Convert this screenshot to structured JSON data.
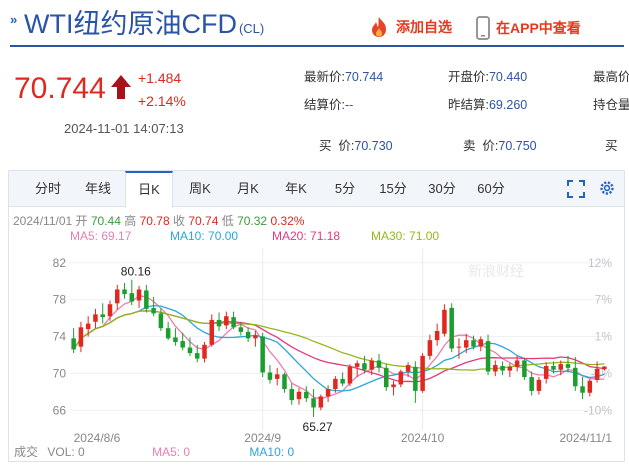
{
  "header": {
    "title": "WTI纽约原油CFD",
    "code": "(CL)",
    "add_fav": "添加自选",
    "view_app": "在APP中查看"
  },
  "quote": {
    "price": "70.744",
    "change": "+1.484",
    "change_pct": "+2.14%",
    "datetime": "2024-11-01 14:07:13",
    "stats": {
      "latest_label": "最新价:",
      "latest": "70.744",
      "open_label": "开盘价:",
      "open": "70.440",
      "high_label": "最高价",
      "settle_label": "结算价:",
      "settle": "--",
      "prev_settle_label": "昨结算:",
      "prev_settle": "69.260",
      "oi_label": "持仓量",
      "bid_label": "买  价:",
      "bid": "70.730",
      "ask_label": "卖  价:",
      "ask": "70.750",
      "bid2_label": "买  "
    }
  },
  "tabs": [
    "分时",
    "年线",
    "日K",
    "周K",
    "月K",
    "年K",
    "5分",
    "15分",
    "30分",
    "60分"
  ],
  "active_tab": 2,
  "ohlc_info": {
    "date": "2024/11/01",
    "open_label": "开",
    "open": "70.44",
    "high_label": "高",
    "high": "70.78",
    "close_label": "收",
    "close": "70.74",
    "low_label": "低",
    "low": "70.32",
    "pct": "0.32%"
  },
  "ma_legend": [
    {
      "label": "MA5: 69.17",
      "color": "#e87fb0"
    },
    {
      "label": "MA10: 70.00",
      "color": "#2aa7d8"
    },
    {
      "label": "MA20: 71.18",
      "color": "#e6397a"
    },
    {
      "label": "MA30: 71.00",
      "color": "#93b81c"
    }
  ],
  "footer": {
    "vol_label": "成交",
    "vol": "VOL: 0",
    "ma5": "MA5: 0",
    "ma10": "MA10: 0"
  },
  "watermark": "新浪财经",
  "colors": {
    "up": "#e0281f",
    "down": "#1b9e2e",
    "accent": "#2462c4"
  },
  "chart_data": {
    "type": "candlestick",
    "y_ticks": [
      "82",
      "78",
      "74",
      "70",
      "66"
    ],
    "y_range": [
      64.4,
      83.6
    ],
    "pct_ticks": [
      "12%",
      "7%",
      "1%",
      "-4%",
      "-10%"
    ],
    "x_labels": [
      "2024/8/6",
      "2024/9",
      "2024/10",
      "2024/11/1"
    ],
    "annotations": [
      {
        "text": "80.16",
        "value": 80.16
      },
      {
        "text": "65.27",
        "value": 65.27
      }
    ],
    "candles": [
      {
        "o": 73.8,
        "h": 74.9,
        "l": 72.2,
        "c": 72.6
      },
      {
        "o": 72.9,
        "h": 75.6,
        "l": 72.3,
        "c": 75.0
      },
      {
        "o": 74.8,
        "h": 76.2,
        "l": 74.0,
        "c": 75.4
      },
      {
        "o": 75.6,
        "h": 77.0,
        "l": 74.9,
        "c": 76.4
      },
      {
        "o": 76.4,
        "h": 77.6,
        "l": 75.4,
        "c": 76.1
      },
      {
        "o": 76.2,
        "h": 77.9,
        "l": 75.7,
        "c": 77.5
      },
      {
        "o": 77.6,
        "h": 79.6,
        "l": 76.9,
        "c": 79.1
      },
      {
        "o": 79.1,
        "h": 79.8,
        "l": 78.1,
        "c": 78.6
      },
      {
        "o": 78.7,
        "h": 80.16,
        "l": 77.4,
        "c": 77.8
      },
      {
        "o": 77.9,
        "h": 79.5,
        "l": 77.1,
        "c": 79.1
      },
      {
        "o": 79.0,
        "h": 79.6,
        "l": 76.6,
        "c": 77.0
      },
      {
        "o": 77.1,
        "h": 78.3,
        "l": 76.2,
        "c": 76.5
      },
      {
        "o": 76.5,
        "h": 77.1,
        "l": 74.6,
        "c": 74.9
      },
      {
        "o": 74.9,
        "h": 75.6,
        "l": 73.6,
        "c": 73.8
      },
      {
        "o": 73.9,
        "h": 74.9,
        "l": 73.0,
        "c": 73.4
      },
      {
        "o": 73.5,
        "h": 74.4,
        "l": 72.5,
        "c": 72.8
      },
      {
        "o": 72.8,
        "h": 73.9,
        "l": 71.9,
        "c": 72.2
      },
      {
        "o": 72.2,
        "h": 73.1,
        "l": 71.2,
        "c": 71.6
      },
      {
        "o": 71.6,
        "h": 73.4,
        "l": 71.2,
        "c": 73.1
      },
      {
        "o": 73.1,
        "h": 76.4,
        "l": 72.9,
        "c": 75.8
      },
      {
        "o": 75.8,
        "h": 76.6,
        "l": 74.6,
        "c": 75.1
      },
      {
        "o": 75.2,
        "h": 76.7,
        "l": 74.8,
        "c": 76.2
      },
      {
        "o": 76.1,
        "h": 76.7,
        "l": 74.8,
        "c": 75.0
      },
      {
        "o": 75.0,
        "h": 75.6,
        "l": 74.1,
        "c": 74.5
      },
      {
        "o": 74.5,
        "h": 75.0,
        "l": 73.4,
        "c": 73.8
      },
      {
        "o": 73.8,
        "h": 74.6,
        "l": 72.9,
        "c": 74.1
      },
      {
        "o": 74.0,
        "h": 74.4,
        "l": 69.6,
        "c": 70.1
      },
      {
        "o": 70.1,
        "h": 70.9,
        "l": 68.9,
        "c": 69.3
      },
      {
        "o": 69.4,
        "h": 70.6,
        "l": 68.7,
        "c": 69.9
      },
      {
        "o": 69.9,
        "h": 70.1,
        "l": 67.9,
        "c": 68.3
      },
      {
        "o": 68.3,
        "h": 68.9,
        "l": 66.6,
        "c": 67.1
      },
      {
        "o": 67.2,
        "h": 68.4,
        "l": 66.6,
        "c": 68.0
      },
      {
        "o": 68.0,
        "h": 68.6,
        "l": 66.9,
        "c": 67.3
      },
      {
        "o": 67.3,
        "h": 68.3,
        "l": 65.27,
        "c": 66.3
      },
      {
        "o": 66.3,
        "h": 67.7,
        "l": 66.0,
        "c": 67.5
      },
      {
        "o": 67.5,
        "h": 68.7,
        "l": 66.9,
        "c": 68.3
      },
      {
        "o": 68.3,
        "h": 69.7,
        "l": 67.9,
        "c": 69.4
      },
      {
        "o": 69.4,
        "h": 70.1,
        "l": 68.6,
        "c": 68.9
      },
      {
        "o": 68.9,
        "h": 71.0,
        "l": 68.6,
        "c": 70.7
      },
      {
        "o": 70.7,
        "h": 71.4,
        "l": 69.6,
        "c": 71.1
      },
      {
        "o": 71.1,
        "h": 71.9,
        "l": 70.0,
        "c": 70.4
      },
      {
        "o": 70.4,
        "h": 71.7,
        "l": 69.8,
        "c": 71.4
      },
      {
        "o": 71.4,
        "h": 72.1,
        "l": 70.1,
        "c": 70.6
      },
      {
        "o": 70.6,
        "h": 71.0,
        "l": 68.1,
        "c": 68.5
      },
      {
        "o": 68.5,
        "h": 69.2,
        "l": 67.6,
        "c": 68.8
      },
      {
        "o": 68.8,
        "h": 70.4,
        "l": 68.5,
        "c": 70.2
      },
      {
        "o": 70.2,
        "h": 71.2,
        "l": 69.6,
        "c": 70.9
      },
      {
        "o": 70.7,
        "h": 71.3,
        "l": 66.8,
        "c": 68.1
      },
      {
        "o": 68.1,
        "h": 72.2,
        "l": 67.9,
        "c": 71.9
      },
      {
        "o": 71.9,
        "h": 74.2,
        "l": 71.5,
        "c": 73.6
      },
      {
        "o": 73.6,
        "h": 75.4,
        "l": 73.0,
        "c": 74.6
      },
      {
        "o": 74.3,
        "h": 77.5,
        "l": 74.0,
        "c": 76.9
      },
      {
        "o": 77.1,
        "h": 77.6,
        "l": 72.3,
        "c": 72.7
      },
      {
        "o": 72.8,
        "h": 73.8,
        "l": 71.6,
        "c": 72.9
      },
      {
        "o": 72.8,
        "h": 74.3,
        "l": 72.2,
        "c": 73.6
      },
      {
        "o": 73.6,
        "h": 74.1,
        "l": 72.6,
        "c": 72.9
      },
      {
        "o": 72.9,
        "h": 74.0,
        "l": 72.4,
        "c": 73.7
      },
      {
        "o": 73.5,
        "h": 74.2,
        "l": 69.8,
        "c": 70.2
      },
      {
        "o": 70.2,
        "h": 71.4,
        "l": 69.7,
        "c": 70.9
      },
      {
        "o": 70.8,
        "h": 71.3,
        "l": 69.8,
        "c": 70.3
      },
      {
        "o": 70.3,
        "h": 71.1,
        "l": 69.6,
        "c": 70.7
      },
      {
        "o": 70.7,
        "h": 71.9,
        "l": 70.2,
        "c": 71.4
      },
      {
        "o": 71.4,
        "h": 71.7,
        "l": 69.3,
        "c": 69.6
      },
      {
        "o": 69.6,
        "h": 70.2,
        "l": 67.6,
        "c": 68.1
      },
      {
        "o": 68.1,
        "h": 69.6,
        "l": 67.7,
        "c": 69.3
      },
      {
        "o": 69.4,
        "h": 71.2,
        "l": 68.9,
        "c": 70.8
      },
      {
        "o": 70.8,
        "h": 71.3,
        "l": 70.0,
        "c": 70.4
      },
      {
        "o": 70.4,
        "h": 71.4,
        "l": 69.8,
        "c": 71.0
      },
      {
        "o": 71.0,
        "h": 71.9,
        "l": 70.1,
        "c": 70.6
      },
      {
        "o": 70.6,
        "h": 71.8,
        "l": 68.1,
        "c": 68.6
      },
      {
        "o": 68.6,
        "h": 69.6,
        "l": 67.2,
        "c": 67.9
      },
      {
        "o": 67.9,
        "h": 69.4,
        "l": 67.5,
        "c": 69.2
      },
      {
        "o": 69.3,
        "h": 71.3,
        "l": 69.0,
        "c": 70.5
      },
      {
        "o": 70.44,
        "h": 70.78,
        "l": 70.32,
        "c": 70.74
      }
    ]
  }
}
